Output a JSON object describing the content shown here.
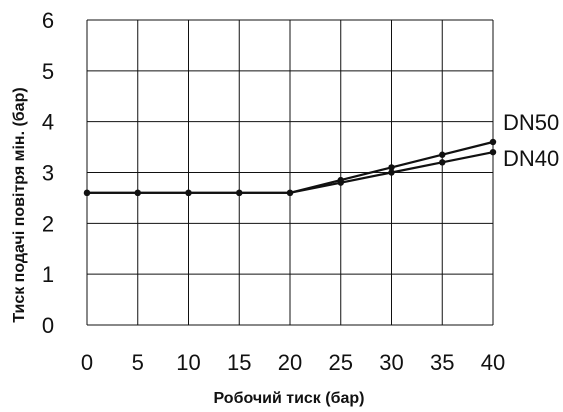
{
  "chart_data": {
    "type": "line",
    "title": "",
    "xlabel": "Робочий тиск (бар)",
    "ylabel": "Тиск подачі повітря мін. (бар)",
    "x": [
      0,
      5,
      10,
      15,
      20,
      25,
      30,
      35,
      40
    ],
    "xlim": [
      0,
      40
    ],
    "ylim": [
      0,
      6
    ],
    "xticks": [
      "0",
      "5",
      "10",
      "15",
      "20",
      "25",
      "30",
      "35",
      "40"
    ],
    "yticks": [
      "0",
      "1",
      "2",
      "3",
      "4",
      "5",
      "6"
    ],
    "grid": true,
    "series": [
      {
        "name": "DN50",
        "values": [
          2.6,
          2.6,
          2.6,
          2.6,
          2.6,
          2.85,
          3.1,
          3.35,
          3.6
        ],
        "color": "#111111"
      },
      {
        "name": "DN40",
        "values": [
          2.6,
          2.6,
          2.6,
          2.6,
          2.6,
          2.8,
          3.0,
          3.2,
          3.4
        ],
        "color": "#111111"
      }
    ]
  }
}
